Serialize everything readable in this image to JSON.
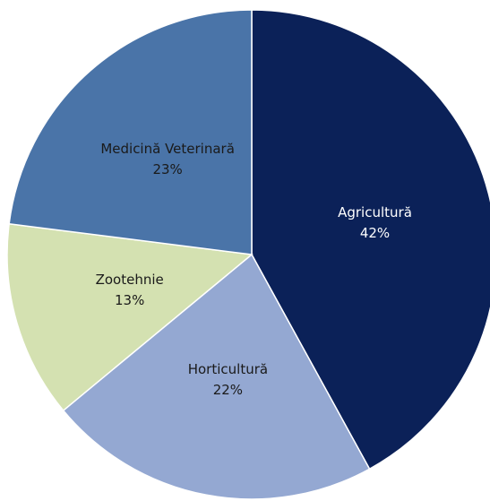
{
  "chart_data": {
    "type": "pie",
    "categories": [
      "Agricultură",
      "Horticultură",
      "Zootehnie",
      "Medicină Veterinară"
    ],
    "values": [
      42,
      22,
      13,
      23
    ],
    "value_labels": [
      "42%",
      "22%",
      "13%",
      "23%"
    ],
    "colors": [
      "#0b2158",
      "#94a8d2",
      "#d4e1b1",
      "#4a74a8"
    ]
  }
}
